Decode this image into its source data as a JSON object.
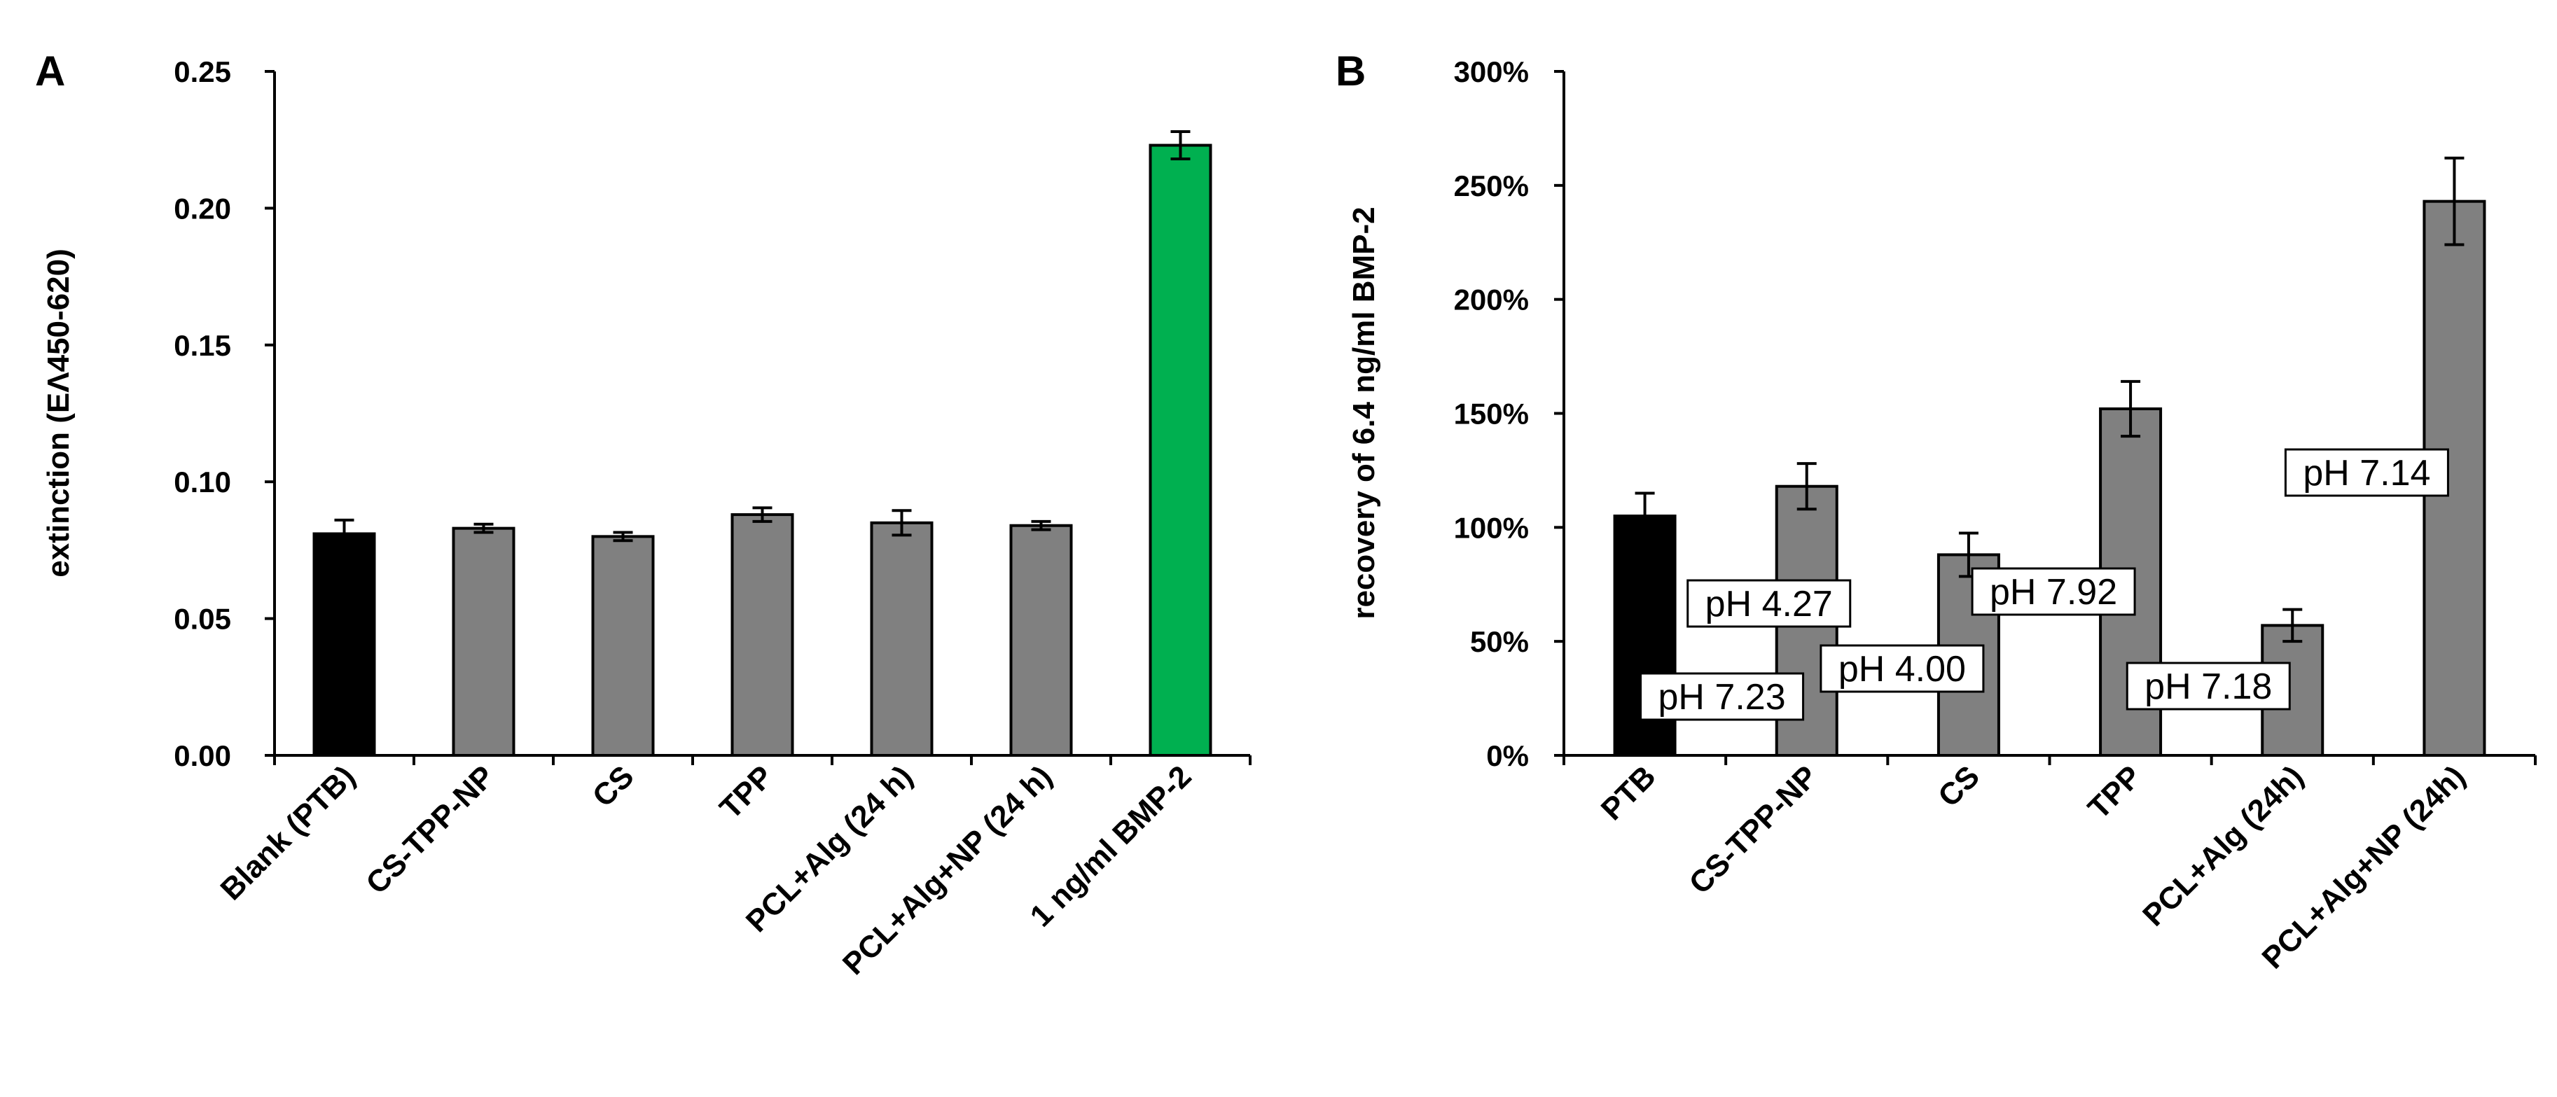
{
  "chart_data": [
    {
      "type": "bar",
      "panel": "A",
      "ylabel": "extinction (EΛ450-620)",
      "ylim": [
        0,
        0.25
      ],
      "yticks": [
        0.0,
        0.05,
        0.1,
        0.15,
        0.2,
        0.25
      ],
      "ytick_labels": [
        "0.00",
        "0.05",
        "0.10",
        "0.15",
        "0.20",
        "0.25"
      ],
      "categories": [
        "Blank (PTB)",
        "CS-TPP-NP",
        "CS",
        "TPP",
        "PCL+Alg (24 h)",
        "PCL+Alg+NP (24 h)",
        "1 ng/ml BMP-2"
      ],
      "values": [
        0.081,
        0.083,
        0.08,
        0.088,
        0.085,
        0.084,
        0.223
      ],
      "errors": [
        0.005,
        0.0015,
        0.0015,
        0.0025,
        0.0045,
        0.0015,
        0.005
      ],
      "colors": [
        "#000000",
        "#808080",
        "#808080",
        "#808080",
        "#808080",
        "#808080",
        "#00b050"
      ]
    },
    {
      "type": "bar",
      "panel": "B",
      "ylabel": "recovery of 6.4 ng/ml BMP-2",
      "ylim": [
        0,
        300
      ],
      "yticks": [
        0,
        50,
        100,
        150,
        200,
        250,
        300
      ],
      "ytick_labels": [
        "0%",
        "50%",
        "100%",
        "150%",
        "200%",
        "250%",
        "300%"
      ],
      "categories": [
        "PTB",
        "CS-TPP-NP",
        "CS",
        "TPP",
        "PCL+Alg (24h)",
        "PCL+Alg+NP (24h)"
      ],
      "values": [
        105,
        118,
        88,
        152,
        57,
        243
      ],
      "errors": [
        10,
        10,
        9.5,
        12,
        7,
        19
      ],
      "colors": [
        "#000000",
        "#808080",
        "#808080",
        "#808080",
        "#808080",
        "#808080"
      ],
      "annotations": [
        "pH 7.23",
        "pH 4.27",
        "pH 4.00",
        "pH 7.92",
        "pH 7.18",
        "pH 7.14"
      ]
    }
  ]
}
